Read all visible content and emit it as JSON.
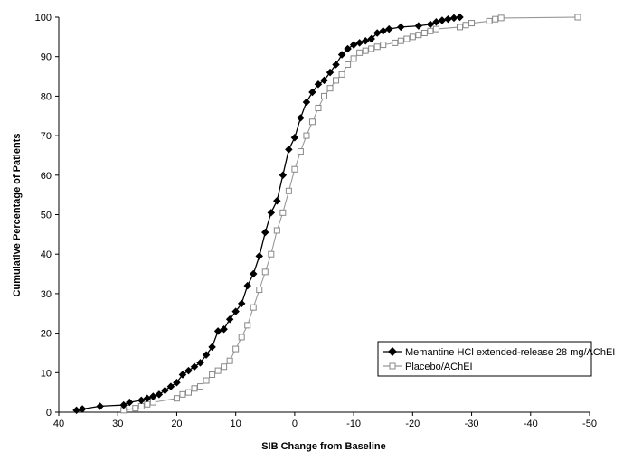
{
  "chart_data": {
    "type": "line",
    "title": "",
    "xlabel": "SIB Change from Baseline",
    "ylabel": "Cumulative Percentage of Patients",
    "xlim": [
      40,
      -50
    ],
    "ylim": [
      0,
      100
    ],
    "x_reversed": true,
    "x_ticks": [
      "40",
      "30",
      "20",
      "10",
      "0",
      "-10",
      "-20",
      "-30",
      "-40",
      "-50"
    ],
    "y_ticks": [
      "0",
      "10",
      "20",
      "30",
      "40",
      "50",
      "60",
      "70",
      "80",
      "90",
      "100"
    ],
    "grid": false,
    "legend_position": "bottom-right",
    "series": [
      {
        "name": "Memantine HCl extended-release 28 mg/AChEI",
        "color": "#000000",
        "marker": "filled-diamond",
        "x": [
          37,
          36,
          33,
          29,
          28,
          26,
          25,
          24,
          23,
          22,
          21,
          20,
          19,
          18,
          17,
          16,
          15,
          14,
          13,
          12,
          11,
          10,
          9,
          8,
          7,
          6,
          5,
          4,
          3,
          2,
          1,
          0,
          -1,
          -2,
          -3,
          -4,
          -5,
          -6,
          -7,
          -8,
          -9,
          -10,
          -11,
          -12,
          -13,
          -14,
          -15,
          -16,
          -18,
          -21,
          -23,
          -24,
          -25,
          -26,
          -27,
          -28
        ],
        "y": [
          0.5,
          0.8,
          1.5,
          1.8,
          2.5,
          3.0,
          3.5,
          4.0,
          4.5,
          5.5,
          6.5,
          7.5,
          9.5,
          10.5,
          11.5,
          12.5,
          14.5,
          16.5,
          20.5,
          21.0,
          23.5,
          25.5,
          27.5,
          32.0,
          35.0,
          39.5,
          45.5,
          50.5,
          53.5,
          60.0,
          66.5,
          69.5,
          74.5,
          78.5,
          81.0,
          83.0,
          84.0,
          86.0,
          88.0,
          90.5,
          92.0,
          93.0,
          93.5,
          94.0,
          94.5,
          96.0,
          96.5,
          97.0,
          97.5,
          97.8,
          98.2,
          98.8,
          99.2,
          99.5,
          99.8,
          100
        ]
      },
      {
        "name": "Placebo/AChEI",
        "color": "#999999",
        "marker": "open-square",
        "x": [
          29,
          27,
          26,
          25,
          24,
          20,
          19,
          18,
          17,
          16,
          15,
          14,
          13,
          12,
          11,
          10,
          9,
          8,
          7,
          6,
          5,
          4,
          3,
          2,
          1,
          0,
          -1,
          -2,
          -3,
          -4,
          -5,
          -6,
          -7,
          -8,
          -9,
          -10,
          -11,
          -12,
          -13,
          -14,
          -15,
          -17,
          -18,
          -19,
          -20,
          -21,
          -22,
          -23,
          -24,
          -28,
          -29,
          -30,
          -33,
          -34,
          -35,
          -48
        ],
        "y": [
          0.5,
          1.0,
          1.5,
          2.0,
          2.5,
          3.5,
          4.5,
          5.0,
          6.0,
          6.5,
          8.0,
          9.5,
          10.5,
          11.5,
          13.0,
          16.0,
          19.0,
          22.0,
          26.5,
          31.0,
          35.5,
          40.0,
          46.0,
          50.5,
          56.0,
          61.5,
          66.0,
          70.0,
          73.5,
          77.0,
          80.0,
          82.0,
          84.0,
          85.5,
          88.0,
          89.5,
          91.0,
          91.5,
          92.0,
          92.5,
          93.0,
          93.5,
          94.0,
          94.5,
          95.0,
          95.5,
          96.0,
          96.5,
          97.0,
          97.5,
          98.0,
          98.5,
          99.0,
          99.5,
          99.8,
          100
        ]
      }
    ]
  }
}
